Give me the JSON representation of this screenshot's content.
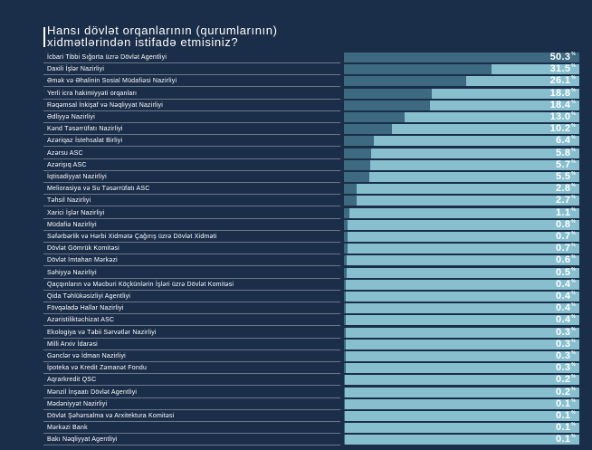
{
  "chart_data": {
    "type": "bar",
    "orientation": "horizontal",
    "title": "Hansı dövlət orqanlarının (qurumlarının) xidmətlərindən istifadə etmisiniz?",
    "unit": "%",
    "xlim": [
      0,
      50.3
    ],
    "categories": [
      "İcbari Tibbi Sığorta üzrə Dövlət Agentliyi",
      "Daxili İşlər Nazirliyi",
      "Əmək və Əhalinin Sosial Müdafiəsi Nazirliyi",
      "Yerli icra hakimiyyəti orqanları",
      "Rəqəmsal İnkişaf və Nəqliyyat Nazirliyi",
      "Ədliyyə Nazirliyi",
      "Kənd Təsərrüfatı Nazirliyi",
      "Azəriqaz İstehsalat Birliyi",
      "Azərsu ASC",
      "Azərişıq ASC",
      "İqtisadiyyat Nazirliyi",
      "Meliorasiya və Su Təsərrüfatı ASC",
      "Təhsil Nazirliyi",
      "Xarici İşlər Nazirliyi",
      "Müdafiə Nazirliyi",
      "Səfərbərlik və Hərbi Xidmətə Çağırış üzrə Dövlət Xidməti",
      "Dövlət Gömrük Komitəsi",
      "Dövlət İmtahan Mərkəzi",
      "Səhiyyə Nazirliyi",
      "Qaçqınların və Məcburi Köçkünlərin İşləri üzrə Dövlət Komitəsi",
      "Qida Təhlükəsizliyi Agentliyi",
      "Fövqəladə Hallar Nazirliyi",
      "Azəristiliktəchizat ASC",
      "Ekologiya və Təbii Sərvətlər Nazirliyi",
      "Milli Arxiv İdarəsi",
      "Gənclər və İdman Nazirliyi",
      "İpoteka və Kredit Zəmanət Fondu",
      "Aqrarkredit QSC",
      "Mənzil İnşaatı Dövlət Agentliyi",
      "Mədəniyyət Nazirliyi",
      "Dövlət Şəhərsalma və Arxitektura Komitəsi",
      "Mərkəzi Bank",
      "Bakı Nəqliyyat Agentliyi"
    ],
    "values": [
      50.3,
      31.5,
      26.1,
      18.8,
      18.4,
      13.0,
      10.2,
      6.4,
      5.8,
      5.7,
      5.5,
      2.8,
      2.7,
      1.1,
      0.8,
      0.7,
      0.7,
      0.6,
      0.5,
      0.4,
      0.4,
      0.4,
      0.4,
      0.3,
      0.3,
      0.3,
      0.3,
      0.2,
      0.2,
      0.1,
      0.1,
      0.1,
      0.1
    ],
    "value_labels": [
      "50.3",
      "31.5",
      "26.1",
      "18.8",
      "18.4",
      "13.0",
      "10.2",
      "6.4",
      "5.8",
      "5.7",
      "5.5",
      "2.8",
      "2.7",
      "1.1",
      "0.8",
      "0.7",
      "0.7",
      "0.6",
      "0.5",
      "0.4",
      "0.4",
      "0.4",
      "0.4",
      "0.3",
      "0.3",
      "0.3",
      "0.3",
      "0.2",
      "0.2",
      "0.1",
      "0.1",
      "0.1",
      "0.1"
    ]
  },
  "colors": {
    "background": "#1b2e49",
    "bar_track": "#87bfcf",
    "bar_fill": "#3d6a80",
    "text": "#ffffff"
  }
}
